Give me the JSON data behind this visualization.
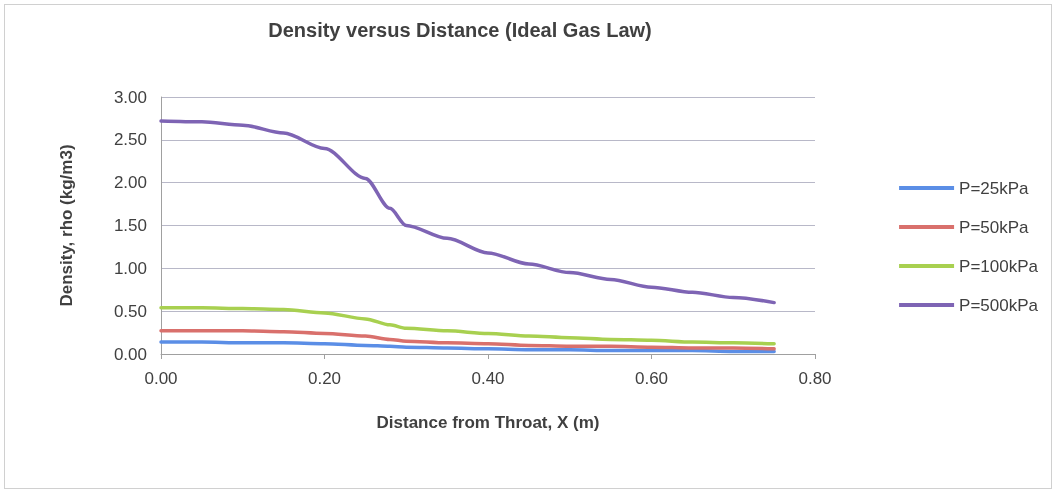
{
  "chart_data": {
    "type": "line",
    "title": "Density versus Distance (Ideal Gas Law)",
    "xlabel": "Distance from Throat, X (m)",
    "ylabel": "Density, rho (kg/m3)",
    "x": [
      0,
      0.05,
      0.1,
      0.15,
      0.2,
      0.25,
      0.28,
      0.3,
      0.35,
      0.4,
      0.45,
      0.5,
      0.55,
      0.6,
      0.65,
      0.7,
      0.75
    ],
    "series": [
      {
        "name": "P=25kPa",
        "color": "#5b8ee6",
        "values": [
          0.14,
          0.14,
          0.13,
          0.13,
          0.12,
          0.1,
          0.09,
          0.08,
          0.07,
          0.06,
          0.05,
          0.05,
          0.04,
          0.04,
          0.04,
          0.03,
          0.03
        ]
      },
      {
        "name": "P=50kPa",
        "color": "#d9706c",
        "values": [
          0.27,
          0.27,
          0.27,
          0.26,
          0.24,
          0.21,
          0.17,
          0.15,
          0.13,
          0.12,
          0.1,
          0.09,
          0.09,
          0.08,
          0.07,
          0.07,
          0.06
        ]
      },
      {
        "name": "P=100kPa",
        "color": "#a8d050",
        "values": [
          0.54,
          0.54,
          0.53,
          0.52,
          0.48,
          0.41,
          0.34,
          0.3,
          0.27,
          0.24,
          0.21,
          0.19,
          0.17,
          0.16,
          0.14,
          0.13,
          0.12
        ]
      },
      {
        "name": "P=500kPa",
        "color": "#7e64b4",
        "values": [
          2.72,
          2.71,
          2.67,
          2.58,
          2.4,
          2.05,
          1.7,
          1.5,
          1.35,
          1.18,
          1.05,
          0.95,
          0.87,
          0.78,
          0.72,
          0.66,
          0.6
        ]
      }
    ],
    "xlim": [
      0,
      0.8
    ],
    "xticks": [
      {
        "value": 0,
        "label": "0.00"
      },
      {
        "value": 0.2,
        "label": "0.20"
      },
      {
        "value": 0.4,
        "label": "0.40"
      },
      {
        "value": 0.6,
        "label": "0.60"
      },
      {
        "value": 0.8,
        "label": "0.80"
      }
    ],
    "ylim": [
      0,
      3
    ],
    "yticks": [
      {
        "value": 0,
        "label": "0.00"
      },
      {
        "value": 0.5,
        "label": "0.50"
      },
      {
        "value": 1,
        "label": "1.00"
      },
      {
        "value": 1.5,
        "label": "1.50"
      },
      {
        "value": 2,
        "label": "2.00"
      },
      {
        "value": 2.5,
        "label": "2.50"
      },
      {
        "value": 3,
        "label": "3.00"
      }
    ],
    "grid": "y",
    "legend": "right",
    "marker": "none",
    "line_style": "solid"
  }
}
